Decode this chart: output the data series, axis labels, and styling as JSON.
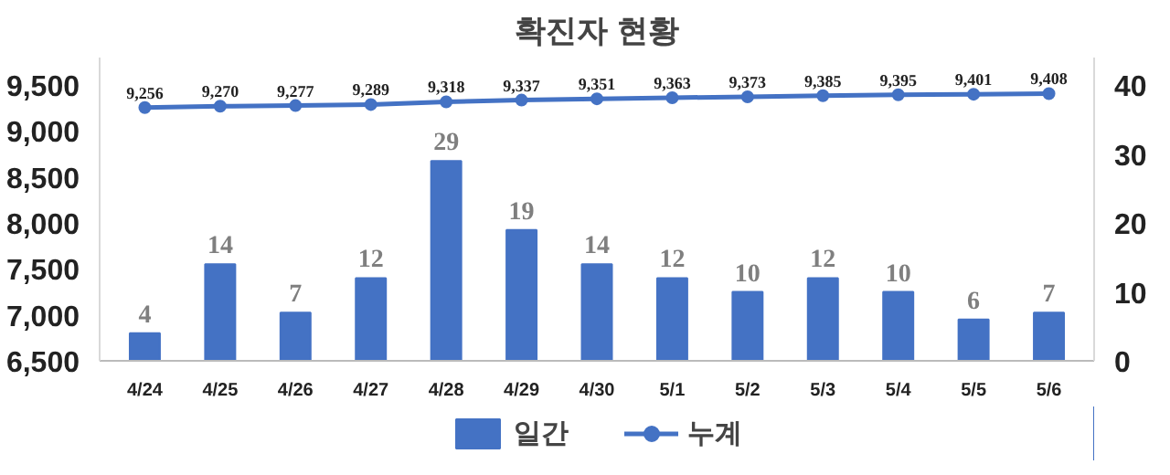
{
  "chart_data": {
    "type": "bar",
    "title": "확진자 현황",
    "categories": [
      "4/24",
      "4/25",
      "4/26",
      "4/27",
      "4/28",
      "4/29",
      "4/30",
      "5/1",
      "5/2",
      "5/3",
      "5/4",
      "5/5",
      "5/6"
    ],
    "series": [
      {
        "name": "일간",
        "type": "bar",
        "axis": "y2",
        "color": "#4472c4",
        "values": [
          4,
          14,
          7,
          12,
          29,
          19,
          14,
          12,
          10,
          12,
          10,
          6,
          7
        ]
      },
      {
        "name": "누계",
        "type": "line",
        "color": "#4472c4",
        "marker": "circle",
        "values": [
          9256,
          9270,
          9277,
          9289,
          9318,
          9337,
          9351,
          9363,
          9373,
          9385,
          9395,
          9401,
          9408
        ],
        "value_labels": [
          "9,256",
          "9,270",
          "9,277",
          "9,289",
          "9,318",
          "9,337",
          "9,351",
          "9,363",
          "9,373",
          "9,385",
          "9,395",
          "9,401",
          "9,408"
        ]
      }
    ],
    "ylim": [
      6500,
      9800
    ],
    "yticks": [
      {
        "value": 6500,
        "label": "6,500"
      },
      {
        "value": 7000,
        "label": "7,000"
      },
      {
        "value": 7500,
        "label": "7,500"
      },
      {
        "value": 8000,
        "label": "8,000"
      },
      {
        "value": 8500,
        "label": "8,500"
      },
      {
        "value": 9000,
        "label": "9,000"
      },
      {
        "value": 9500,
        "label": "9,500"
      }
    ],
    "y2lim": [
      0,
      44
    ],
    "y2ticks": [
      0,
      10,
      20,
      30,
      40
    ],
    "data_labels": true,
    "grid": false,
    "legend": "bottom"
  }
}
